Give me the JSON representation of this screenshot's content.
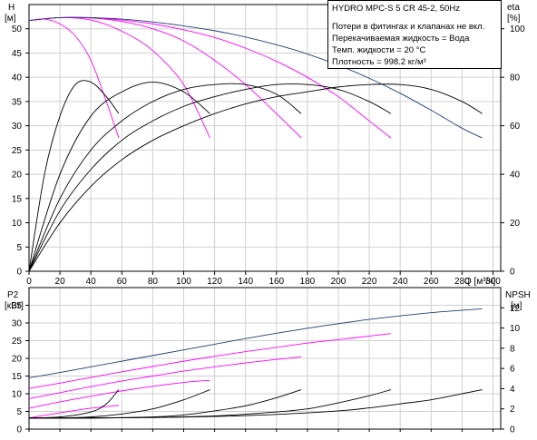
{
  "chart_data": [
    {
      "type": "line",
      "title": "HYDRO MPC-S 5 CR 45-2, 50Hz",
      "notes": [
        "Потери в фитингах и клапанах не вкл.",
        "Перекачиваемая жидкость = Вода",
        "Темп. жидкости = 20 °C",
        "Плотность = 998.2 кг/м³"
      ],
      "xlabel": "Q [м³/ч]",
      "ylabel_left": "H",
      "ylabel_left_unit": "[м]",
      "ylabel_right": "eta",
      "ylabel_right_unit": "[%]",
      "xlim": [
        0,
        305
      ],
      "ylim_left": [
        0,
        55
      ],
      "ylim_right": [
        0,
        110
      ],
      "x_ticks": [
        0,
        20,
        40,
        60,
        80,
        100,
        120,
        140,
        160,
        180,
        200,
        220,
        240,
        260,
        280,
        300
      ],
      "y_left_ticks": [
        0,
        5,
        10,
        15,
        20,
        25,
        30,
        35,
        40,
        45,
        50
      ],
      "y_right_ticks": [
        0,
        20,
        40,
        60,
        80,
        100
      ],
      "grid": true,
      "series": [
        {
          "kind": "head",
          "axis": "left",
          "color": "#ff00ff",
          "x": [
            0,
            10,
            20,
            30,
            40,
            50,
            58
          ],
          "y": [
            51.7,
            52,
            51,
            48.5,
            43.5,
            35,
            27.5
          ]
        },
        {
          "kind": "head",
          "axis": "left",
          "color": "#ff00ff",
          "x": [
            0,
            20,
            40,
            60,
            80,
            100,
            117
          ],
          "y": [
            51.7,
            52.3,
            51.8,
            49.5,
            45.5,
            38.5,
            27.5
          ]
        },
        {
          "kind": "head",
          "axis": "left",
          "color": "#ff00ff",
          "x": [
            0,
            20,
            40,
            60,
            80,
            100,
            120,
            140,
            160,
            176
          ],
          "y": [
            51.7,
            52.3,
            52.2,
            51.5,
            50,
            47.5,
            43.5,
            38.5,
            32.5,
            27.5
          ]
        },
        {
          "kind": "head",
          "axis": "left",
          "color": "#ff00ff",
          "x": [
            0,
            20,
            40,
            60,
            80,
            100,
            120,
            140,
            160,
            180,
            200,
            220,
            234
          ],
          "y": [
            51.7,
            52.3,
            52.3,
            51.8,
            51,
            49.8,
            48.2,
            46,
            43.3,
            40,
            36,
            31,
            27.5
          ]
        },
        {
          "kind": "head",
          "axis": "left",
          "color": "#1f3f73",
          "x": [
            0,
            20,
            40,
            60,
            80,
            100,
            120,
            140,
            160,
            180,
            200,
            220,
            240,
            260,
            280,
            293
          ],
          "y": [
            51.7,
            52.3,
            52.3,
            52,
            51.4,
            50.6,
            49.6,
            48.3,
            46.7,
            44.8,
            42.5,
            39.8,
            36.7,
            33.2,
            29.5,
            27.5
          ]
        },
        {
          "kind": "efficiency",
          "axis": "right",
          "color": "#000000",
          "x": [
            0,
            10,
            20,
            30,
            40,
            50,
            58
          ],
          "y": [
            0,
            40,
            64,
            77,
            78,
            72,
            65
          ]
        },
        {
          "kind": "efficiency",
          "axis": "right",
          "color": "#000000",
          "x": [
            0,
            20,
            40,
            60,
            80,
            100,
            117
          ],
          "y": [
            0,
            40,
            64,
            74,
            78,
            74,
            65
          ]
        },
        {
          "kind": "efficiency",
          "axis": "right",
          "color": "#000000",
          "x": [
            0,
            20,
            40,
            60,
            80,
            100,
            120,
            140,
            160,
            176
          ],
          "y": [
            0,
            30,
            50,
            62,
            70,
            75,
            77,
            77,
            73,
            65
          ]
        },
        {
          "kind": "efficiency",
          "axis": "right",
          "color": "#000000",
          "x": [
            0,
            20,
            40,
            60,
            80,
            100,
            120,
            140,
            160,
            180,
            200,
            220,
            234
          ],
          "y": [
            0,
            25,
            42,
            54,
            62,
            68,
            72,
            75,
            77,
            77,
            75,
            70,
            65
          ]
        },
        {
          "kind": "efficiency",
          "axis": "right",
          "color": "#000000",
          "x": [
            0,
            20,
            40,
            60,
            80,
            100,
            120,
            140,
            160,
            180,
            200,
            220,
            240,
            260,
            280,
            293
          ],
          "y": [
            0,
            20,
            35,
            46,
            54,
            60,
            65,
            69,
            72,
            74,
            76,
            77,
            77,
            75,
            70,
            65
          ]
        }
      ]
    },
    {
      "type": "line",
      "xlabel": "",
      "ylabel_left": "P2",
      "ylabel_left_unit": "[кВт]",
      "ylabel_right": "NPSH",
      "ylabel_right_unit": "[м]",
      "xlim": [
        0,
        305
      ],
      "ylim_left": [
        0,
        40
      ],
      "ylim_right": [
        0,
        14
      ],
      "y_left_ticks": [
        0,
        5,
        10,
        15,
        20,
        25,
        30,
        35
      ],
      "y_right_ticks": [
        0,
        2,
        4,
        6,
        8,
        10,
        12
      ],
      "grid": true,
      "series": [
        {
          "kind": "power",
          "axis": "left",
          "color": "#ff00ff",
          "x": [
            0,
            20,
            40,
            58
          ],
          "y": [
            3.2,
            4.6,
            5.9,
            6.7
          ]
        },
        {
          "kind": "power",
          "axis": "left",
          "color": "#ff00ff",
          "x": [
            0,
            20,
            40,
            60,
            80,
            100,
            117
          ],
          "y": [
            5.9,
            7.7,
            9.3,
            10.8,
            12.1,
            13.2,
            13.8
          ]
        },
        {
          "kind": "power",
          "axis": "left",
          "color": "#ff00ff",
          "x": [
            0,
            20,
            40,
            60,
            80,
            100,
            120,
            140,
            160,
            176
          ],
          "y": [
            8.6,
            10.3,
            12,
            13.6,
            15,
            16.4,
            17.6,
            18.7,
            19.7,
            20.4
          ]
        },
        {
          "kind": "power",
          "axis": "left",
          "color": "#ff00ff",
          "x": [
            0,
            20,
            40,
            60,
            80,
            100,
            120,
            140,
            160,
            180,
            200,
            220,
            234
          ],
          "y": [
            11.5,
            13,
            14.6,
            16.2,
            17.7,
            19.2,
            20.6,
            21.9,
            23.1,
            24.3,
            25.3,
            26.3,
            27
          ]
        },
        {
          "kind": "power",
          "axis": "left",
          "color": "#1f3f73",
          "x": [
            0,
            20,
            40,
            60,
            80,
            100,
            120,
            140,
            160,
            180,
            200,
            220,
            240,
            260,
            280,
            293
          ],
          "y": [
            14.5,
            16,
            17.6,
            19.2,
            20.8,
            22.4,
            24,
            25.6,
            27.1,
            28.5,
            29.8,
            31,
            32,
            32.9,
            33.6,
            34
          ]
        },
        {
          "kind": "npsh",
          "axis": "right",
          "color": "#000000",
          "x": [
            0,
            20,
            40,
            50,
            58
          ],
          "y": [
            1.1,
            1.2,
            1.7,
            2.5,
            3.9
          ]
        },
        {
          "kind": "npsh",
          "axis": "right",
          "color": "#000000",
          "x": [
            0,
            20,
            40,
            60,
            80,
            100,
            117
          ],
          "y": [
            1.1,
            1.1,
            1.2,
            1.5,
            2.0,
            2.9,
            3.9
          ]
        },
        {
          "kind": "npsh",
          "axis": "right",
          "color": "#000000",
          "x": [
            0,
            40,
            80,
            100,
            120,
            140,
            160,
            176
          ],
          "y": [
            1.1,
            1.1,
            1.2,
            1.4,
            1.8,
            2.3,
            3.1,
            3.9
          ]
        },
        {
          "kind": "npsh",
          "axis": "right",
          "color": "#000000",
          "x": [
            0,
            40,
            80,
            120,
            160,
            180,
            200,
            220,
            234
          ],
          "y": [
            1.1,
            1.1,
            1.15,
            1.3,
            1.7,
            2.0,
            2.6,
            3.3,
            3.9
          ]
        },
        {
          "kind": "npsh",
          "axis": "right",
          "color": "#000000",
          "x": [
            0,
            40,
            80,
            120,
            160,
            200,
            220,
            240,
            260,
            280,
            293
          ],
          "y": [
            1.1,
            1.1,
            1.15,
            1.25,
            1.45,
            1.8,
            2.1,
            2.5,
            2.9,
            3.5,
            3.9
          ]
        }
      ]
    }
  ]
}
